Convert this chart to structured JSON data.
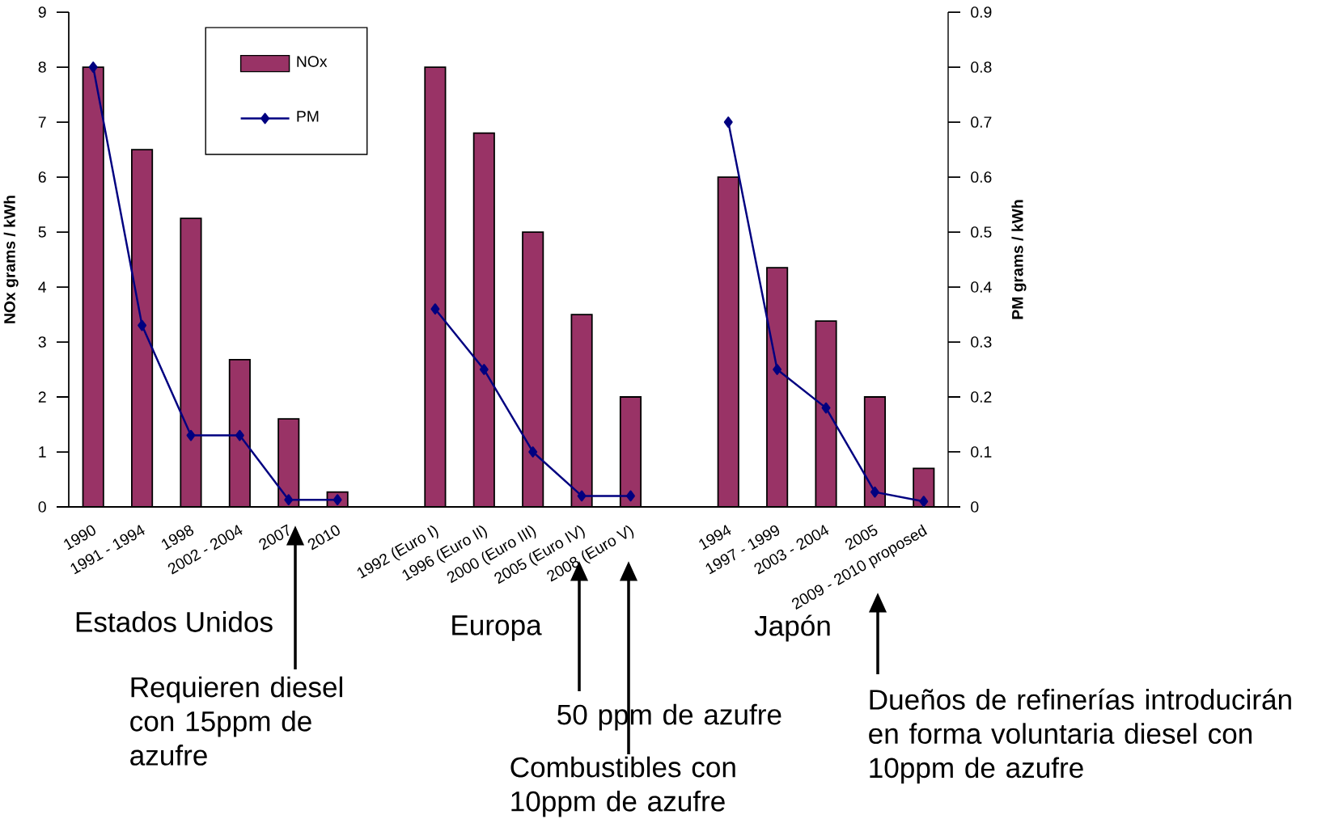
{
  "chart_data": {
    "type": "bar",
    "categories": [
      "1990",
      "1991 - 1994",
      "1998",
      "2002 - 2004",
      "2007",
      "2010",
      null,
      "1992 (Euro I)",
      "1996 (Euro II)",
      "2000 (Euro III)",
      "2005 (Euro IV)",
      "2008 (Euro V)",
      null,
      "1994",
      "1997 - 1999",
      "2003 - 2004",
      "2005",
      "2009 - 2010 proposed"
    ],
    "series": [
      {
        "name": "NOx",
        "color": "#993366",
        "values": [
          8,
          6.5,
          5.25,
          2.68,
          1.6,
          0.27,
          null,
          8,
          6.8,
          5,
          3.5,
          2,
          null,
          6,
          4.35,
          3.38,
          2,
          0.7
        ]
      },
      {
        "name": "PM",
        "type": "line",
        "axis": "y2",
        "color": "#000080",
        "values": [
          0.8,
          0.33,
          0.13,
          0.13,
          0.013,
          0.013,
          null,
          0.36,
          0.25,
          0.1,
          0.02,
          0.02,
          null,
          0.7,
          0.25,
          0.18,
          0.027,
          0.01
        ]
      }
    ],
    "ylabel": "NOx grams / kWh",
    "y2label": "PM grams / kWh",
    "ylim": [
      0,
      9
    ],
    "yticks": [
      0,
      1,
      2,
      3,
      4,
      5,
      6,
      7,
      8,
      9
    ],
    "y2lim": [
      0,
      0.9
    ],
    "y2ticks": [
      0,
      0.1,
      0.2,
      0.3,
      0.4,
      0.5,
      0.6,
      0.7,
      0.8,
      0.9
    ],
    "legend": "top left",
    "marker": "diamond",
    "line_style": "solid",
    "grid": false,
    "annotations": [
      "Estados Unidos",
      "Europa",
      "Japón",
      "Requieren diesel con 15ppm de azufre",
      "50 ppm de azufre",
      "Combustibles con 10ppm de azufre",
      "Dueños de refinerías introducirán en forma voluntaria diesel con 10ppm de azufre"
    ]
  }
}
